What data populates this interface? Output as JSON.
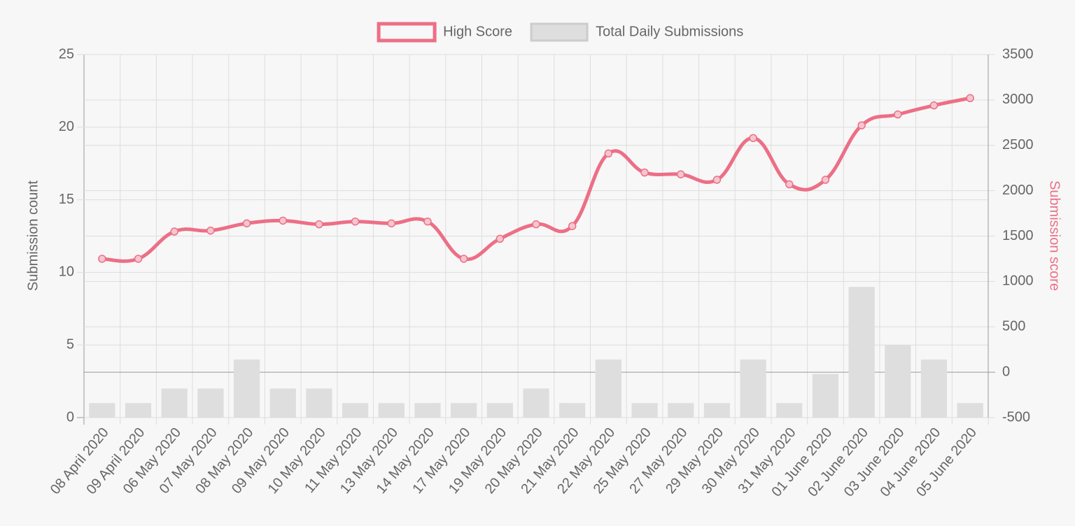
{
  "chart_data": {
    "type": "bar-line",
    "categories": [
      "08 April 2020",
      "09 April 2020",
      "06 May 2020",
      "07 May 2020",
      "08 May 2020",
      "09 May 2020",
      "10 May 2020",
      "11 May 2020",
      "13 May 2020",
      "14 May 2020",
      "17 May 2020",
      "19 May 2020",
      "20 May 2020",
      "21 May 2020",
      "22 May 2020",
      "25 May 2020",
      "27 May 2020",
      "29 May 2020",
      "30 May 2020",
      "31 May 2020",
      "01 June 2020",
      "02 June 2020",
      "03 June 2020",
      "04 June 2020",
      "05 June 2020"
    ],
    "series": [
      {
        "name": "High Score",
        "type": "line",
        "axis": "y2",
        "color": "#ec6f86",
        "values": [
          1250,
          1250,
          1550,
          1560,
          1640,
          1670,
          1630,
          1660,
          1640,
          1660,
          1250,
          1470,
          1630,
          1610,
          2410,
          2200,
          2180,
          2120,
          2580,
          2070,
          2120,
          2720,
          2840,
          2940,
          3020
        ]
      },
      {
        "name": "Total Daily Submissions",
        "type": "bar",
        "axis": "y",
        "color": "#dedede",
        "values": [
          1,
          1,
          2,
          2,
          4,
          2,
          2,
          1,
          1,
          1,
          1,
          1,
          2,
          1,
          4,
          1,
          1,
          1,
          4,
          1,
          3,
          9,
          5,
          4,
          1
        ]
      }
    ],
    "ylabel": "Submission count",
    "y2label": "Submission score",
    "ylim": [
      0,
      25
    ],
    "yticks": [
      0,
      5,
      10,
      15,
      20,
      25
    ],
    "y2lim": [
      -500,
      3500
    ],
    "y2ticks": [
      -500,
      0,
      500,
      1000,
      1500,
      2000,
      2500,
      3000,
      3500
    ],
    "grid": true,
    "legend": "top"
  }
}
